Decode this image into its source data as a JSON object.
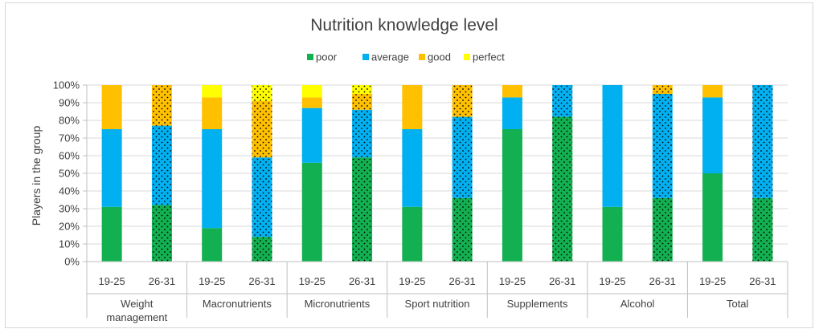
{
  "chart_data": {
    "type": "bar",
    "stacked": true,
    "title": "Nutrition knowledge level",
    "ylabel": "Players in the group",
    "xlabel": "",
    "ylim": [
      0,
      100
    ],
    "y_ticks": [
      "0%",
      "10%",
      "20%",
      "30%",
      "40%",
      "50%",
      "60%",
      "70%",
      "80%",
      "90%",
      "100%"
    ],
    "grid": true,
    "legend_position": "top",
    "groups": [
      {
        "label_lines": [
          "Weight",
          "management"
        ],
        "bars": [
          {
            "label": "19-25",
            "values": [
              31,
              44,
              25,
              0
            ],
            "dotted": false
          },
          {
            "label": "26-31",
            "values": [
              32,
              45,
              23,
              0
            ],
            "dotted": true
          }
        ]
      },
      {
        "label_lines": [
          "Macronutrients"
        ],
        "bars": [
          {
            "label": "19-25",
            "values": [
              19,
              56,
              18,
              7
            ],
            "dotted": false
          },
          {
            "label": "26-31",
            "values": [
              14,
              45,
              32,
              9
            ],
            "dotted": true
          }
        ]
      },
      {
        "label_lines": [
          "Micronutrients"
        ],
        "bars": [
          {
            "label": "19-25",
            "values": [
              56,
              31,
              6,
              7
            ],
            "dotted": false
          },
          {
            "label": "26-31",
            "values": [
              59,
              27,
              9,
              5
            ],
            "dotted": true
          }
        ]
      },
      {
        "label_lines": [
          "Sport nutrition"
        ],
        "bars": [
          {
            "label": "19-25",
            "values": [
              31,
              44,
              25,
              0
            ],
            "dotted": false
          },
          {
            "label": "26-31",
            "values": [
              36,
              46,
              18,
              0
            ],
            "dotted": true
          }
        ]
      },
      {
        "label_lines": [
          "Supplements"
        ],
        "bars": [
          {
            "label": "19-25",
            "values": [
              75,
              18,
              7,
              0
            ],
            "dotted": false
          },
          {
            "label": "26-31",
            "values": [
              82,
              18,
              0,
              0
            ],
            "dotted": true
          }
        ]
      },
      {
        "label_lines": [
          "Alcohol"
        ],
        "bars": [
          {
            "label": "19-25",
            "values": [
              31,
              69,
              0,
              0
            ],
            "dotted": false
          },
          {
            "label": "26-31",
            "values": [
              36,
              59,
              5,
              0
            ],
            "dotted": true
          }
        ]
      },
      {
        "label_lines": [
          "Total"
        ],
        "bars": [
          {
            "label": "19-25",
            "values": [
              50,
              43,
              7,
              0
            ],
            "dotted": false
          },
          {
            "label": "26-31",
            "values": [
              36,
              64,
              0,
              0
            ],
            "dotted": true
          }
        ]
      }
    ],
    "series": [
      {
        "name": "poor",
        "color": "#12b050"
      },
      {
        "name": "average",
        "color": "#00b0f0"
      },
      {
        "name": "good",
        "color": "#ffc000"
      },
      {
        "name": "perfect",
        "color": "#ffff00"
      }
    ]
  }
}
